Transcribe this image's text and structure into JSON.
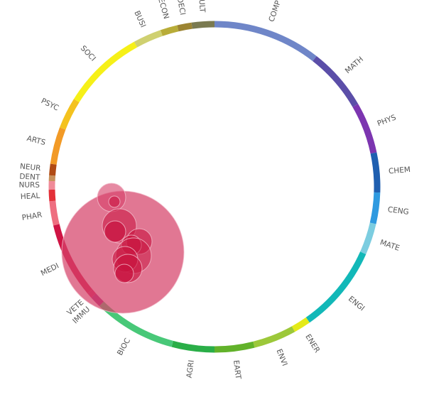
{
  "diagram": {
    "type": "subject-wheel",
    "segments": [
      {
        "label": "MULT",
        "color": "#7a7a50",
        "start": 352.0,
        "end": 0.0
      },
      {
        "label": "COMP",
        "color": "#6f86c8",
        "start": 0.0,
        "end": 38.0
      },
      {
        "label": "MATH",
        "color": "#5b4ea8",
        "start": 38.0,
        "end": 60.0
      },
      {
        "label": "PHYS",
        "color": "#7c35b0",
        "start": 60.0,
        "end": 78.0
      },
      {
        "label": "CHEM",
        "color": "#1f5fb0",
        "start": 78.0,
        "end": 92.0
      },
      {
        "label": "CENG",
        "color": "#2f9ae0",
        "start": 92.0,
        "end": 103.0
      },
      {
        "label": "MATE",
        "color": "#7ccde0",
        "start": 103.0,
        "end": 114.0
      },
      {
        "label": "ENGI",
        "color": "#12b8b8",
        "start": 114.0,
        "end": 145.0
      },
      {
        "label": "ENER",
        "color": "#e4ea18",
        "start": 145.0,
        "end": 151.0
      },
      {
        "label": "ENVI",
        "color": "#9cc83a",
        "start": 151.0,
        "end": 166.0
      },
      {
        "label": "EART",
        "color": "#62b22a",
        "start": 166.0,
        "end": 180.0
      },
      {
        "label": "AGRI",
        "color": "#2aae48",
        "start": 180.0,
        "end": 195.0
      },
      {
        "label": "BIOC",
        "color": "#48c878",
        "start": 195.0,
        "end": 224.0
      },
      {
        "label": "IMMU",
        "color": "#a8267a",
        "start": 224.0,
        "end": 228.0
      },
      {
        "label": "VETE",
        "color": "#d01f5e",
        "start": 228.0,
        "end": 230.0
      },
      {
        "label": "MEDI",
        "color": "#cf1444",
        "start": 230.0,
        "end": 256.5
      },
      {
        "label": "PHAR",
        "color": "#ee6e80",
        "start": 256.5,
        "end": 265.0
      },
      {
        "label": "HEAL",
        "color": "#e33038",
        "start": 265.0,
        "end": 269.0
      },
      {
        "label": "NURS",
        "color": "#f08a98",
        "start": 269.0,
        "end": 272.0
      },
      {
        "label": "DENT",
        "color": "#c8905a",
        "start": 272.0,
        "end": 274.0
      },
      {
        "label": "NEUR",
        "color": "#b04a14",
        "start": 274.0,
        "end": 278.0
      },
      {
        "label": "ARTS",
        "color": "#f29a26",
        "start": 278.0,
        "end": 291.0
      },
      {
        "label": "PSYC",
        "color": "#f4c21e",
        "start": 291.0,
        "end": 302.0
      },
      {
        "label": "SOCI",
        "color": "#f6f018",
        "start": 302.0,
        "end": 331.0
      },
      {
        "label": "BUSI",
        "color": "#cfd070",
        "start": 331.0,
        "end": 341.0
      },
      {
        "label": "ECON",
        "color": "#b8ac38",
        "start": 341.0,
        "end": 347.0
      },
      {
        "label": "DECI",
        "color": "#9c8432",
        "start": 347.0,
        "end": 352.0
      }
    ],
    "colors": {
      "bubble_fill": "#d6426a",
      "bubble_dark": "#c8123e",
      "bubble_outline": "#f2bccb"
    }
  }
}
